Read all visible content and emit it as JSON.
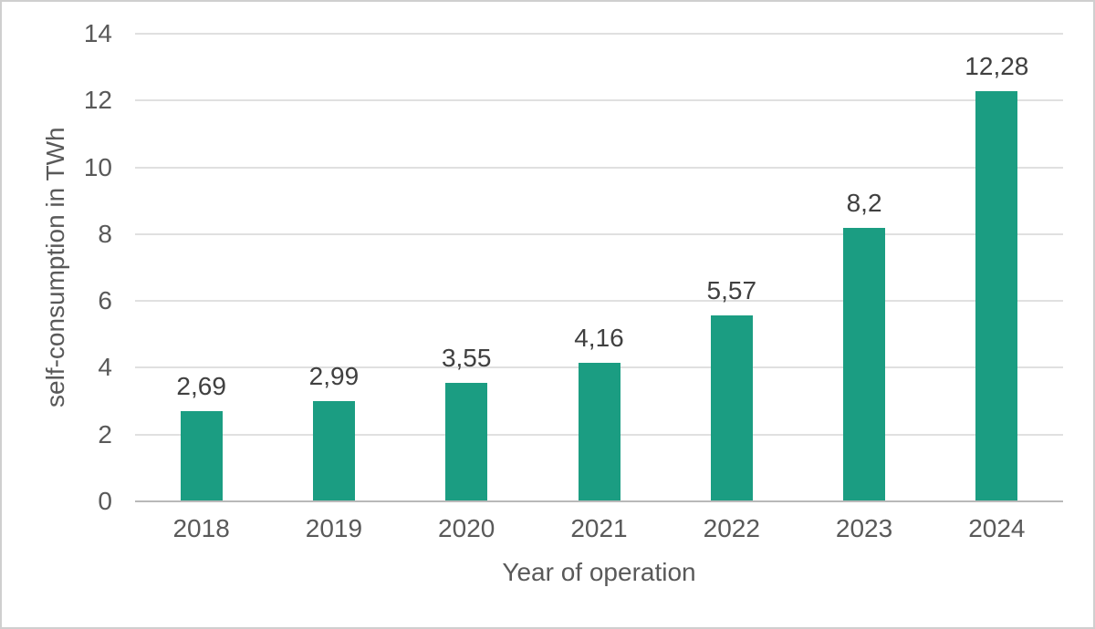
{
  "chart_data": {
    "type": "bar",
    "categories": [
      "2018",
      "2019",
      "2020",
      "2021",
      "2022",
      "2023",
      "2024"
    ],
    "values": [
      2.69,
      2.99,
      3.55,
      4.16,
      5.57,
      8.2,
      12.28
    ],
    "value_labels": [
      "2,69",
      "2,99",
      "3,55",
      "4,16",
      "5,57",
      "8,2",
      "12,28"
    ],
    "title": "",
    "xlabel": "Year of operation",
    "ylabel": "self-consumption in TWh",
    "ylim": [
      0,
      14
    ],
    "yticks": [
      0,
      2,
      4,
      6,
      8,
      10,
      12,
      14
    ],
    "grid": "horizontal-only",
    "legend": "none",
    "colors": {
      "bar": "#1b9d82",
      "label_text": "#404040",
      "axis_text": "#595959",
      "gridline": "#e0e0e0",
      "axis_line": "#b9b9b9",
      "frame_border": "#cfcfcf",
      "background": "#ffffff"
    }
  }
}
